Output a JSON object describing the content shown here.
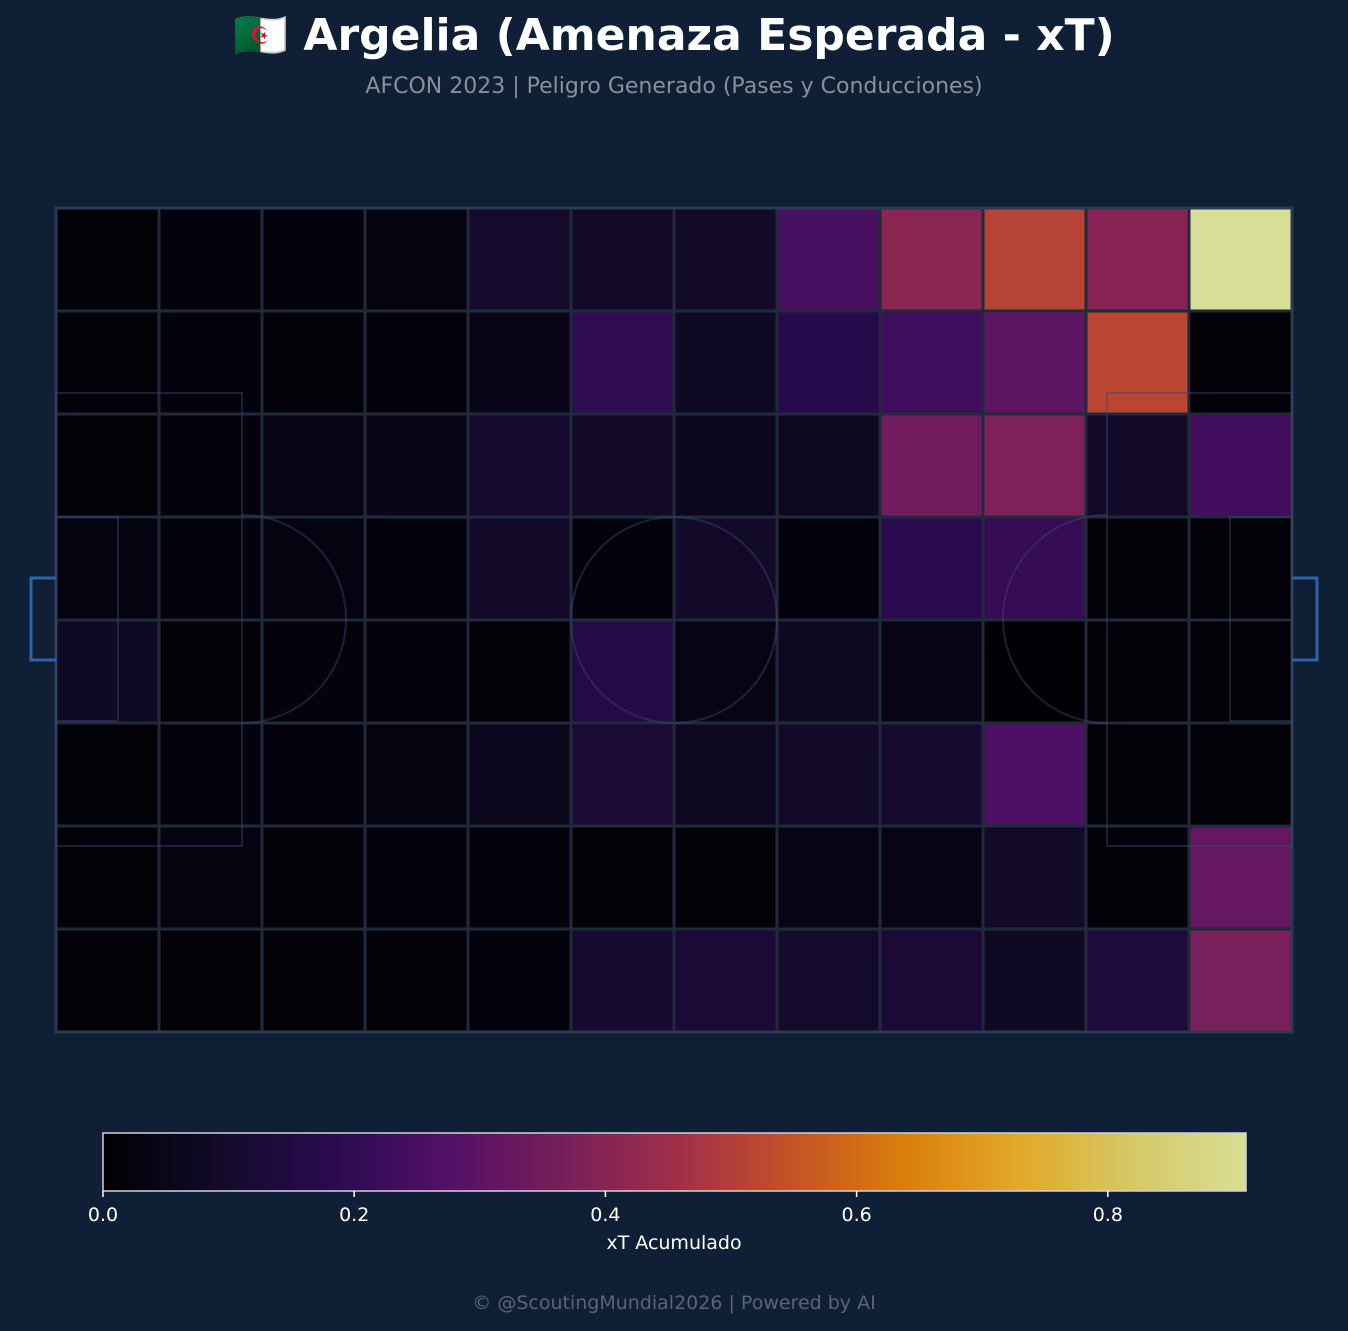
{
  "header": {
    "title": "🇩🇿 Argelia (Amenaza Esperada - xT)",
    "subtitle": "AFCON 2023 | Peligro Generado (Pases y Conducciones)"
  },
  "colorbar": {
    "label": "xT Acumulado",
    "ticks": [
      "0.0",
      "0.2",
      "0.4",
      "0.6",
      "0.8"
    ],
    "tick_values": [
      0,
      0.2,
      0.4,
      0.6,
      0.8
    ],
    "range": [
      0,
      0.91
    ]
  },
  "footer": {
    "text": "© @ScoutingMundial2026 | Powered by AI"
  },
  "colors": {
    "background": "#0f1f35",
    "pitch_lines": "#2a3a52",
    "goal": "#2e63a8",
    "cell_edge": "#1f2a3a",
    "colormap": "inferno-like"
  },
  "chart_data": {
    "type": "heatmap",
    "title": "🇩🇿 Argelia (Amenaza Esperada - xT)",
    "subtitle": "AFCON 2023 | Peligro Generado (Pases y Conducciones)",
    "colorbar_label": "xT Acumulado",
    "rows": 8,
    "cols": 12,
    "values": [
      [
        0.01,
        0.02,
        0.02,
        0.03,
        0.1,
        0.09,
        0.09,
        0.25,
        0.41,
        0.51,
        0.4,
        0.91
      ],
      [
        0.01,
        0.02,
        0.01,
        0.02,
        0.05,
        0.19,
        0.08,
        0.17,
        0.23,
        0.3,
        0.52,
        0.01
      ],
      [
        0.01,
        0.02,
        0.04,
        0.05,
        0.11,
        0.09,
        0.06,
        0.07,
        0.35,
        0.38,
        0.09,
        0.24
      ],
      [
        0.03,
        0.02,
        0.03,
        0.02,
        0.09,
        0.02,
        0.09,
        0.02,
        0.18,
        0.21,
        0.01,
        0.01
      ],
      [
        0.08,
        0.01,
        0.02,
        0.02,
        0.01,
        0.16,
        0.04,
        0.07,
        0.04,
        0.0,
        0.01,
        0.01
      ],
      [
        0.01,
        0.02,
        0.02,
        0.03,
        0.06,
        0.12,
        0.07,
        0.09,
        0.11,
        0.26,
        0.01,
        0.01
      ],
      [
        0.01,
        0.03,
        0.01,
        0.02,
        0.02,
        0.01,
        0.01,
        0.04,
        0.04,
        0.09,
        0.01,
        0.32
      ],
      [
        0.01,
        0.01,
        0.01,
        0.01,
        0.02,
        0.11,
        0.12,
        0.1,
        0.12,
        0.08,
        0.14,
        0.37
      ]
    ]
  }
}
